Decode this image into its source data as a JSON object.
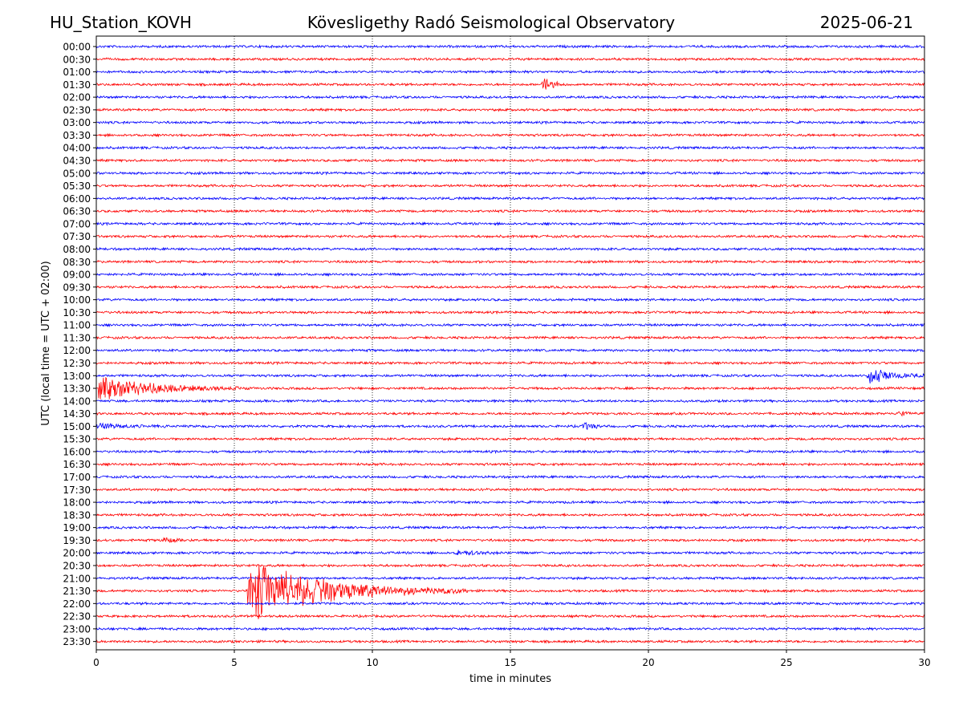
{
  "header": {
    "station": "HU_Station_KOVH",
    "title": "Kövesligethy Radó Seismological Observatory",
    "date": "2025-06-21"
  },
  "chart_data": {
    "type": "line",
    "title": "Kövesligethy Radó Seismological Observatory",
    "xlabel": "time in minutes",
    "ylabel": "UTC (local time = UTC + 02:00)",
    "xlim": [
      0,
      30
    ],
    "x_ticks": [
      0,
      5,
      10,
      15,
      20,
      25,
      30
    ],
    "grid": "vertical dotted lines at x ticks",
    "trace_colors": [
      "#0000ff",
      "#ff0000"
    ],
    "rows": [
      "00:00",
      "00:30",
      "01:00",
      "01:30",
      "02:00",
      "02:30",
      "03:00",
      "03:30",
      "04:00",
      "04:30",
      "05:00",
      "05:30",
      "06:00",
      "06:30",
      "07:00",
      "07:30",
      "08:00",
      "08:30",
      "09:00",
      "09:30",
      "10:00",
      "10:30",
      "11:00",
      "11:30",
      "12:00",
      "12:30",
      "13:00",
      "13:30",
      "14:00",
      "14:30",
      "15:00",
      "15:30",
      "16:00",
      "16:30",
      "17:00",
      "17:30",
      "18:00",
      "18:30",
      "19:00",
      "19:30",
      "20:00",
      "20:30",
      "21:00",
      "21:30",
      "22:00",
      "22:30",
      "23:00",
      "23:30"
    ],
    "events": [
      {
        "row": "01:30",
        "start_min": 16.1,
        "peak_amplitude": 1.1,
        "duration_min": 1.0
      },
      {
        "row": "13:00",
        "start_min": 27.9,
        "peak_amplitude": 1.1,
        "duration_min": 2.1
      },
      {
        "row": "13:30",
        "start_min": 0.0,
        "peak_amplitude": 1.35,
        "duration_min": 5.5
      },
      {
        "row": "14:30",
        "start_min": 29.0,
        "peak_amplitude": 0.25,
        "duration_min": 1.0
      },
      {
        "row": "15:00",
        "start_min": 0.0,
        "peak_amplitude": 0.3,
        "duration_min": 2.8
      },
      {
        "row": "15:00",
        "start_min": 17.55,
        "peak_amplitude": 0.5,
        "duration_min": 1.0
      },
      {
        "row": "19:30",
        "start_min": 2.3,
        "peak_amplitude": 0.35,
        "duration_min": 1.2
      },
      {
        "row": "20:00",
        "start_min": 13.0,
        "peak_amplitude": 0.35,
        "duration_min": 1.8
      },
      {
        "row": "21:30",
        "start_min": 5.45,
        "peak_amplitude": 3.3,
        "duration_min": 8.0
      }
    ]
  }
}
